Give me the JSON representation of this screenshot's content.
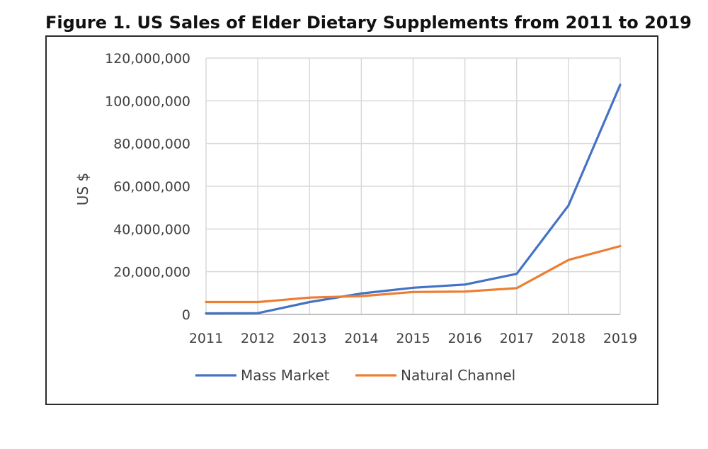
{
  "figure": {
    "title": "Figure 1. US Sales of Elder Dietary Supplements from 2011 to 2019"
  },
  "chart_data": {
    "type": "line",
    "title": "Figure 1. US Sales of Elder Dietary Supplements from 2011 to 2019",
    "xlabel": "",
    "ylabel": "US $",
    "x": [
      "2011",
      "2012",
      "2013",
      "2014",
      "2015",
      "2016",
      "2017",
      "2018",
      "2019"
    ],
    "ylim": [
      0,
      120000000
    ],
    "yticks": [
      0,
      20000000,
      40000000,
      60000000,
      80000000,
      100000000,
      120000000
    ],
    "ytick_labels": [
      "0",
      "20,000,000",
      "40,000,000",
      "60,000,000",
      "80,000,000",
      "100,000,000",
      "120,000,000"
    ],
    "grid": true,
    "legend": "bottom",
    "series": [
      {
        "name": "Mass Market",
        "color": "#4472C4",
        "values": [
          500000,
          600000,
          5800000,
          9800000,
          12500000,
          14000000,
          19000000,
          51000000,
          107500000
        ]
      },
      {
        "name": "Natural Channel",
        "color": "#ED7D31",
        "values": [
          5800000,
          5800000,
          7900000,
          8600000,
          10500000,
          10700000,
          12300000,
          25500000,
          32000000
        ]
      }
    ]
  }
}
